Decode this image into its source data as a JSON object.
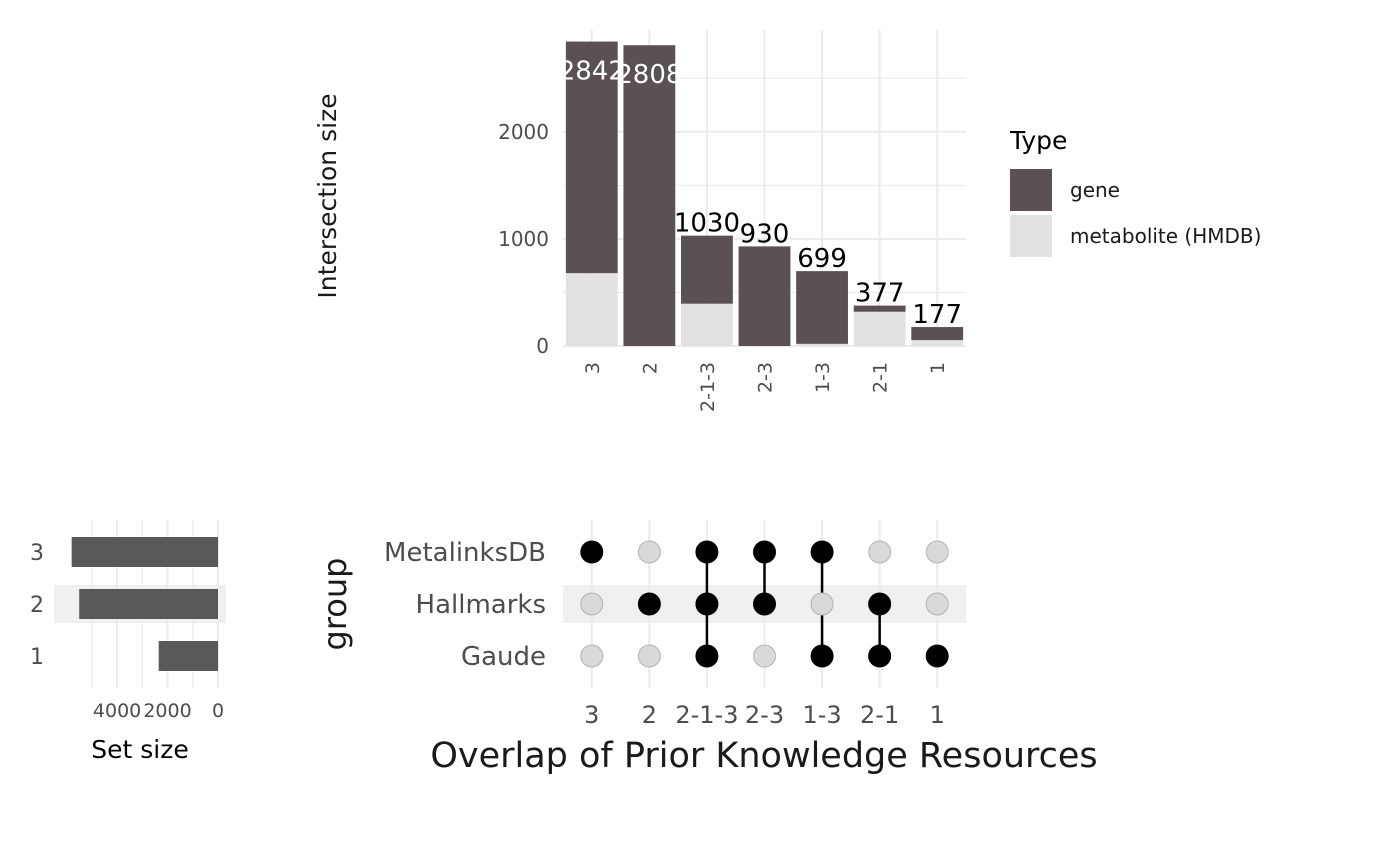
{
  "chart_data": [
    {
      "type": "bar",
      "chart_role": "intersection-size",
      "categories": [
        "3",
        "2",
        "2-1-3",
        "2-3",
        "1-3",
        "2-1",
        "1"
      ],
      "totals": [
        2842,
        2808,
        1030,
        930,
        699,
        377,
        177
      ],
      "series": [
        {
          "name": "metabolite (HMDB)",
          "values": [
            680,
            0,
            395,
            0,
            20,
            320,
            55
          ]
        },
        {
          "name": "gene",
          "values": [
            2162,
            2808,
            635,
            930,
            679,
            57,
            122
          ]
        }
      ],
      "ylabel": "Intersection size",
      "yticks": [
        0,
        1000,
        2000
      ],
      "ylim": [
        0,
        2950
      ],
      "grid": true,
      "stacked": true
    },
    {
      "type": "bar",
      "chart_role": "set-size",
      "orientation": "horizontal-reversed",
      "categories": [
        "3",
        "2",
        "1"
      ],
      "values": [
        5800,
        5500,
        2350
      ],
      "xlabel": "Set size",
      "xticks": [
        4000,
        2000,
        0
      ],
      "xtick_labels": [
        "4000",
        "2000",
        "0"
      ],
      "xlim": [
        6500,
        0
      ]
    },
    {
      "type": "matrix",
      "chart_role": "intersection-matrix",
      "rows": [
        "MetalinksDB",
        "Hallmarks",
        "Gaude"
      ],
      "columns": [
        "3",
        "2",
        "2-1-3",
        "2-3",
        "1-3",
        "2-1",
        "1"
      ],
      "membership": [
        [
          1,
          0,
          1,
          1,
          1,
          0,
          0
        ],
        [
          0,
          1,
          1,
          1,
          0,
          1,
          0
        ],
        [
          0,
          0,
          1,
          0,
          1,
          1,
          1
        ]
      ],
      "ylabel": "group",
      "xlabel": "Overlap of Prior Knowledge Resources"
    }
  ],
  "legend": {
    "title": "Type",
    "placement": "right",
    "items": [
      {
        "label": "gene",
        "color": "#5a5056"
      },
      {
        "label": "metabolite (HMDB)",
        "color": "#e3e1e2"
      }
    ]
  },
  "colors": {
    "gene": "#5a5056",
    "metabolite": "#e3e1e2",
    "set_bar": "#595959",
    "dot_on": "#000000",
    "dot_off": "#d9d9d9",
    "grid": "#ebebeb",
    "stripe": "#f0f0f0"
  }
}
